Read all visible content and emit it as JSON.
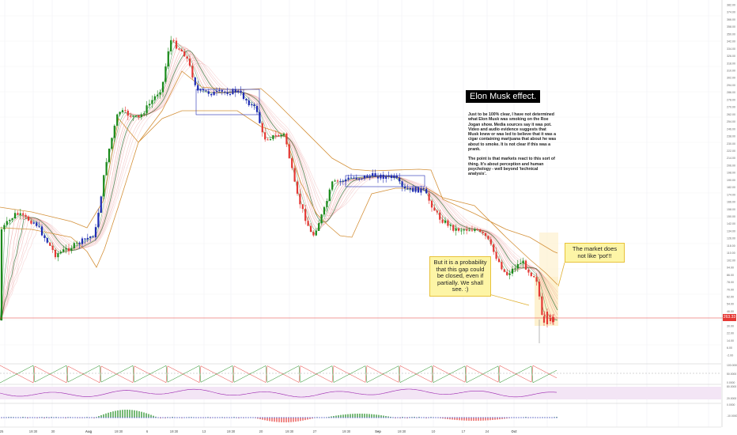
{
  "colors": {
    "up": "#1a8a1a",
    "down": "#e53935",
    "neutral": "#1f2bb5",
    "ribbon_green": "#2e7d32",
    "ribbon_red": "#e57373",
    "bollinger": "#d4913a",
    "highlight": "#fdf1cf",
    "callout_bg": "#fdf5a6",
    "rsi_band": "#f3e5f5"
  },
  "annotations": {
    "title": "Elon Musk effect.",
    "body_p1": "Just to be 100% clear, I have not determined what Elon Musk was smoking on the Roe Jogan show. Media sources say it was pot. Video and audio evidence suggests that Musk knew or was led to believe that it was a cigar containing marijuana that about he was about to smoke. It is not clear if this was a prank.",
    "body_p2": "The point is that markets react to this sort of thing. It's about perception and human psychology - well beyond 'technical analysis'.",
    "callout_left": "But it is a probability that this gap could be closed, even if partially. We shall see. :)",
    "callout_right": "The market does not like 'pot'!!"
  },
  "last_price_label": "263.33",
  "chart_data": {
    "type": "candlestick",
    "y_axis_ticks": [
      "382.00",
      "374.00",
      "366.00",
      "358.00",
      "350.00",
      "342.00",
      "334.00",
      "326.00",
      "318.00",
      "310.00",
      "302.00",
      "294.00",
      "286.00",
      "278.00",
      "270.00",
      "262.00",
      "254.00",
      "246.00",
      "238.00",
      "230.00",
      "222.00",
      "214.00",
      "206.00",
      "198.00",
      "190.00",
      "182.00",
      "174.00",
      "166.00",
      "158.00",
      "150.00",
      "142.00",
      "134.00",
      "126.00",
      "118.00",
      "110.00",
      "102.00",
      "94.00",
      "86.00",
      "78.00",
      "70.00",
      "62.00",
      "54.00",
      "46.00",
      "38.00",
      "30.00",
      "22.00",
      "14.00",
      "6.00",
      "-2.00",
      "-10.00"
    ],
    "x_axis_labels": [
      "25",
      "19:30",
      "30",
      "Aug",
      "19:30",
      "6",
      "19:30",
      "13",
      "19:30",
      "20",
      "19:30",
      "27",
      "19:30",
      "Sep",
      "19:30",
      "10",
      "17",
      "24",
      "Oct"
    ],
    "last_price": 263.33,
    "oscillator_1_ticks": [
      "100.0000",
      "50.0000",
      "0.0000"
    ],
    "oscillator_2_ticks": [
      "80.0000",
      "20.0000"
    ],
    "oscillator_3_ticks": [
      "0.0000",
      "-10.0000"
    ]
  }
}
